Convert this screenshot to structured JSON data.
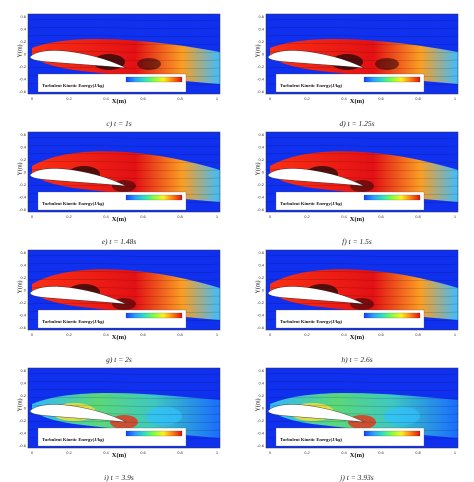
{
  "figure": {
    "ylabel": "Y(m)",
    "xlabel": "X(m)",
    "legend_title": "Turbulent Kinetic Energy(J/kg)",
    "y_ticks": [
      "0.6",
      "0.4",
      "0.2",
      "0",
      "-0.2",
      "-0.4",
      "-0.6"
    ],
    "x_ticks": [
      "0",
      "0.2",
      "0.4",
      "0.6",
      "0.8",
      "1"
    ],
    "colormap": [
      "#1040ff",
      "#2aa0ff",
      "#30e0c0",
      "#80ff40",
      "#fff020",
      "#ff8010",
      "#e01010"
    ],
    "panels": [
      {
        "caption": "c) t = 1s"
      },
      {
        "caption": "d) t = 1.25s"
      },
      {
        "caption": "e) t = 1.48s"
      },
      {
        "caption": "f) t = 1.5s"
      },
      {
        "caption": "g) t = 2s"
      },
      {
        "caption": "h) t = 2.6s"
      },
      {
        "caption": "i) t = 3.9s"
      },
      {
        "caption": "j) t = 3.93s"
      }
    ]
  }
}
